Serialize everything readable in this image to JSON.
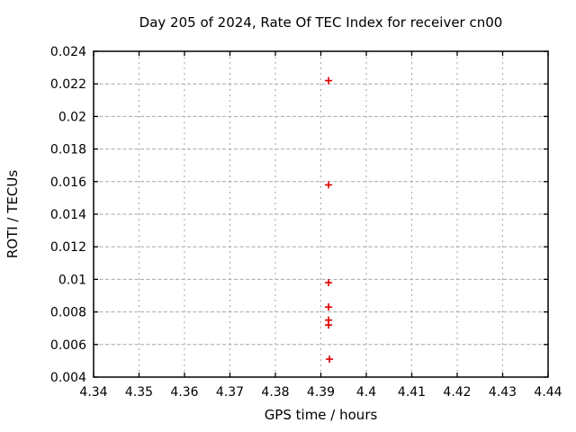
{
  "chart_data": {
    "type": "scatter",
    "title": "Day 205 of 2024, Rate Of TEC Index for receiver cn00",
    "xlabel": "GPS time / hours",
    "ylabel": "ROTI / TECUs",
    "xlim": [
      4.34,
      4.44
    ],
    "ylim": [
      0.004,
      0.024
    ],
    "xticks": [
      4.34,
      4.35,
      4.36,
      4.37,
      4.38,
      4.39,
      4.4,
      4.41,
      4.42,
      4.43,
      4.44
    ],
    "xtick_labels": [
      "4.34",
      "4.35",
      "4.36",
      "4.37",
      "4.38",
      "4.39",
      "4.4",
      "4.41",
      "4.42",
      "4.43",
      "4.44"
    ],
    "yticks": [
      0.004,
      0.006,
      0.008,
      0.01,
      0.012,
      0.014,
      0.016,
      0.018,
      0.02,
      0.022,
      0.024
    ],
    "ytick_labels": [
      "0.004",
      "0.006",
      "0.008",
      "0.01",
      "0.012",
      "0.014",
      "0.016",
      "0.018",
      "0.02",
      "0.022",
      "0.024"
    ],
    "grid": true,
    "legend": "none",
    "grid_color": "#a6a6a6",
    "series": [
      {
        "name": "ROTI",
        "marker": "plus",
        "color": "#dd0000",
        "points": [
          {
            "x": 4.3917,
            "y": 0.0222
          },
          {
            "x": 4.3917,
            "y": 0.0158
          },
          {
            "x": 4.3917,
            "y": 0.0098
          },
          {
            "x": 4.3917,
            "y": 0.0083
          },
          {
            "x": 4.3917,
            "y": 0.0075
          },
          {
            "x": 4.3917,
            "y": 0.0072
          },
          {
            "x": 4.3919,
            "y": 0.0051
          }
        ]
      }
    ]
  }
}
